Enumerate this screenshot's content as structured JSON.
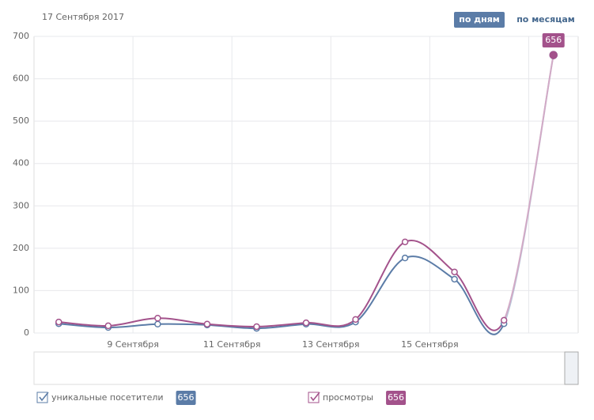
{
  "chart_data": {
    "type": "line",
    "title": "17 Сентября 2017",
    "buttons": [
      "по дням",
      "по месяцам"
    ],
    "categories": [
      null,
      null,
      "9 Сентября",
      null,
      "11 Сентября",
      null,
      "13 Сентября",
      null,
      "15 Сентября",
      null,
      null
    ],
    "series": [
      {
        "name": "уникальные посетители",
        "color": "#5b7ca7",
        "values": [
          22,
          13,
          21,
          19,
          11,
          21,
          26,
          177,
          127,
          22,
          656
        ]
      },
      {
        "name": "просмотры",
        "color": "#a3528b",
        "values": [
          26,
          17,
          35,
          21,
          15,
          24,
          32,
          215,
          144,
          30,
          656
        ]
      }
    ],
    "ylim": [
      0,
      700
    ],
    "yticks": [
      0,
      100,
      200,
      300,
      400,
      500,
      600,
      700
    ],
    "grid": true
  }
}
